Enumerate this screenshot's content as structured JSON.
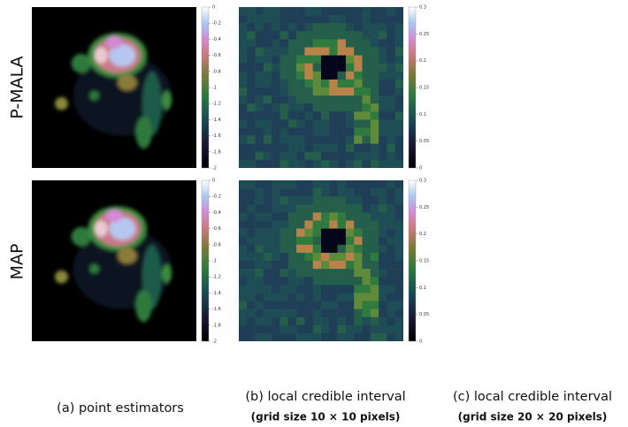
{
  "row_labels": [
    "P-MALA",
    "MAP"
  ],
  "colorbars": {
    "point": [
      "0",
      "-0.2",
      "-0.4",
      "-0.6",
      "-0.8",
      "-1",
      "-1.2",
      "-1.4",
      "-1.6",
      "-1.8",
      "-2"
    ],
    "interval": [
      "0.3",
      "0.25",
      "0.2",
      "0.15",
      "0.1",
      "0.05",
      "0"
    ]
  },
  "captions": [
    {
      "title": "(a) point estimators"
    },
    {
      "title": "(b) local credible interval",
      "subtitle": "(grid size 10 × 10 pixels)"
    },
    {
      "title": "(c) local credible interval",
      "subtitle": "(grid size 20 × 20 pixels)"
    }
  ]
}
